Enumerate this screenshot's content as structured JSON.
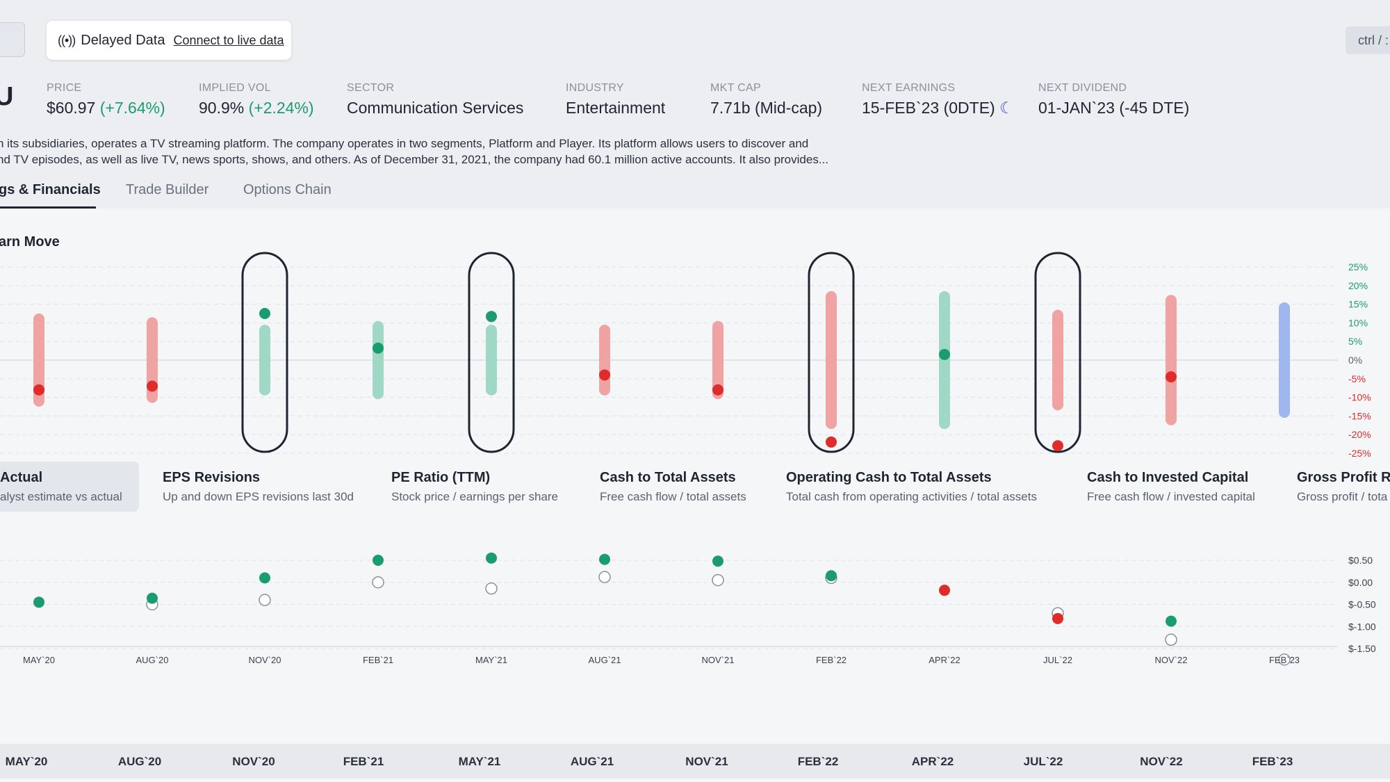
{
  "header": {
    "delayed_label": "Delayed Data",
    "delayed_icon": "broadcast-icon",
    "connect_link": "Connect to live data",
    "shortcut": "ctrl / :",
    "ticker_fragment": "U"
  },
  "stats": [
    {
      "key": "PRICE",
      "value": "$60.97",
      "change": "(+7.64%)"
    },
    {
      "key": "IMPLIED VOL",
      "value": "90.9%",
      "change": "(+2.24%)"
    },
    {
      "key": "SECTOR",
      "value": "Communication Services"
    },
    {
      "key": "INDUSTRY",
      "value": "Entertainment"
    },
    {
      "key": "MKT CAP",
      "value": "7.71b (Mid-cap)"
    },
    {
      "key": "NEXT EARNINGS",
      "value": "15-FEB`23 (0DTE)",
      "icon": "moon-icon"
    },
    {
      "key": "NEXT DIVIDEND",
      "value": "01-JAN`23 (-45 DTE)"
    }
  ],
  "description": [
    "h its subsidiaries, operates a TV streaming platform. The company operates in two segments, Platform and Player. Its platform allows users to discover and",
    "nd TV episodes, as well as live TV, news sports, shows, and others. As of December 31, 2021, the company had 60.1 million active accounts. It also provides..."
  ],
  "tabs": [
    "gs & Financials",
    "Trade Builder",
    "Options Chain"
  ],
  "section_title": "arn Move",
  "metrics": [
    {
      "title": "Actual",
      "subtitle": "alyst estimate vs actual"
    },
    {
      "title": "EPS Revisions",
      "subtitle": "Up and down EPS revisions last 30d"
    },
    {
      "title": "PE Ratio (TTM)",
      "subtitle": "Stock price / earnings per share"
    },
    {
      "title": "Cash to Total Assets",
      "subtitle": "Free cash flow / total assets"
    },
    {
      "title": "Operating Cash to Total Assets",
      "subtitle": "Total cash from operating activities / total assets"
    },
    {
      "title": "Cash to Invested Capital",
      "subtitle": "Free cash flow / invested capital"
    },
    {
      "title": "Gross Profit Ra",
      "subtitle": "Gross profit / tota"
    }
  ],
  "footer_dates": [
    "MAY`20",
    "AUG`20",
    "NOV`20",
    "FEB`21",
    "MAY`21",
    "AUG`21",
    "NOV`21",
    "FEB`22",
    "APR`22",
    "JUL`22",
    "NOV`22",
    "FEB`23"
  ],
  "colors": {
    "up": "#1a9c6e",
    "down": "#e02b2b",
    "range_up": "#9fd8c4",
    "range_down": "#efa3a3",
    "range_next": "#9fb6ee"
  },
  "chart_data": [
    {
      "type": "range",
      "title": "",
      "categories": [
        "MAY`20",
        "AUG`20",
        "NOV`20",
        "FEB`21",
        "MAY`21",
        "AUG`21",
        "NOV`21",
        "FEB`22",
        "APR`22",
        "JUL`22",
        "NOV`22",
        "FEB`23"
      ],
      "y_ticks": [
        "25%",
        "20%",
        "15%",
        "10%",
        "5%",
        "0%",
        "-5%",
        "-10%",
        "-15%",
        "-20%",
        "-25%"
      ],
      "ylim": [
        -25,
        25
      ],
      "expected_low": [
        -11,
        -10,
        -8,
        -9,
        -8,
        -8,
        -9,
        -17,
        -17,
        -12,
        -16,
        -14
      ],
      "expected_high": [
        11,
        10,
        8,
        9,
        8,
        8,
        9,
        17,
        17,
        12,
        16,
        14
      ],
      "actual_move": [
        -8,
        -7,
        12.5,
        3.2,
        11.7,
        -4,
        -8,
        -22,
        1.5,
        -23,
        -4.5,
        null
      ],
      "move_direction": [
        "down",
        "down",
        "up",
        "up",
        "up",
        "down",
        "down",
        "down",
        "up",
        "down",
        "down",
        "next"
      ],
      "outside_range": [
        false,
        false,
        true,
        false,
        true,
        false,
        false,
        true,
        false,
        true,
        false,
        false
      ],
      "grid": true
    },
    {
      "type": "scatter",
      "title": "",
      "categories": [
        "MAY`20",
        "AUG`20",
        "NOV`20",
        "FEB`21",
        "MAY`21",
        "AUG`21",
        "NOV`21",
        "FEB`22",
        "APR`22",
        "JUL`22",
        "NOV`22",
        "FEB`23"
      ],
      "y_ticks": [
        "$0.50",
        "$0.00",
        "$-0.50",
        "$-1.00",
        "$-1.50"
      ],
      "ylim": [
        -1.7,
        0.7
      ],
      "series": [
        {
          "name": "estimate",
          "values": [
            null,
            -0.5,
            -0.4,
            0.0,
            -0.14,
            0.12,
            0.05,
            0.1,
            null,
            -0.7,
            -1.3,
            -1.75
          ]
        },
        {
          "name": "actual",
          "values": [
            -0.45,
            -0.36,
            0.1,
            0.5,
            0.55,
            0.52,
            0.48,
            0.15,
            -0.18,
            -0.82,
            -0.88,
            null
          ]
        }
      ],
      "actual_direction": [
        "up",
        "up",
        "up",
        "up",
        "up",
        "up",
        "up",
        "up",
        "down",
        "down",
        "up",
        null
      ],
      "grid": true
    }
  ]
}
